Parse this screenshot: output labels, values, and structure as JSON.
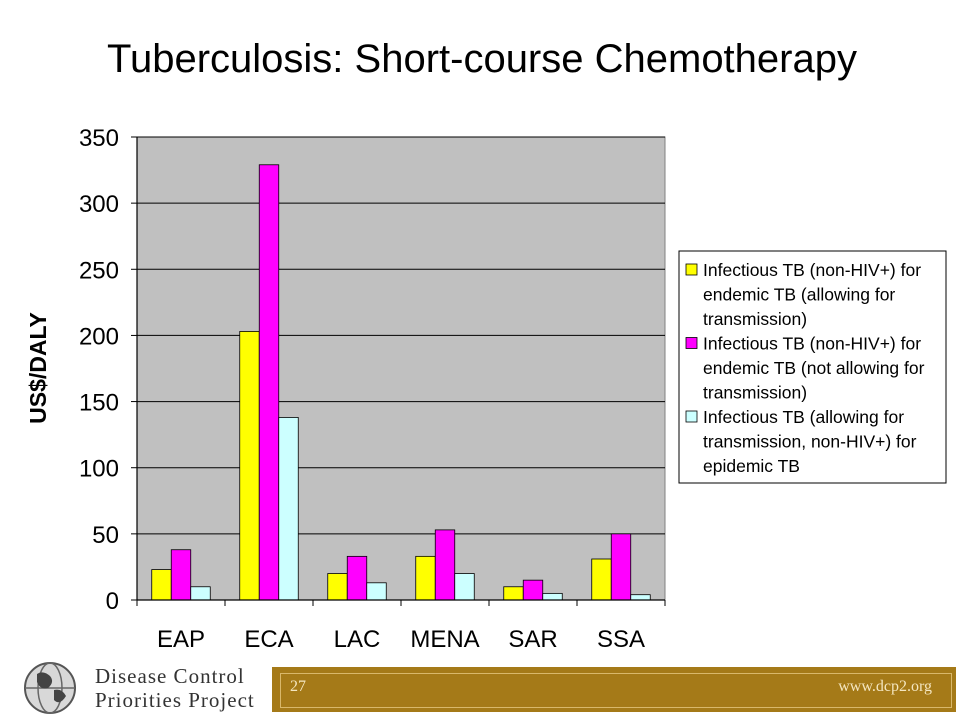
{
  "slide": {
    "page_number": "27",
    "url": "www.dcp2.org",
    "logo_line1": "Disease Control",
    "logo_line2": "Priorities Project"
  },
  "chart_data": {
    "type": "bar",
    "title": "Tuberculosis: Short-course Chemotherapy",
    "xlabel": "",
    "ylabel": "US$/DALY",
    "categories": [
      "EAP",
      "ECA",
      "LAC",
      "MENA",
      "SAR",
      "SSA"
    ],
    "ylim": [
      0,
      350
    ],
    "yticks": [
      0,
      50,
      100,
      150,
      200,
      250,
      300,
      350
    ],
    "grid": true,
    "plot_background": "#c0c0c0",
    "legend_position": "right",
    "series": [
      {
        "name": "Infectious TB (non-HIV+) for endemic TB (allowing for transmission)",
        "legend_lines": [
          "Infectious TB (non-HIV+) for",
          "endemic TB (allowing for",
          "transmission)"
        ],
        "color": "#ffff00",
        "values": [
          23,
          203,
          20,
          33,
          10,
          31
        ]
      },
      {
        "name": "Infectious TB (non-HIV+) for endemic TB (not allowing for transmission)",
        "legend_lines": [
          "Infectious TB (non-HIV+) for",
          "endemic TB (not allowing for",
          "transmission)"
        ],
        "color": "#ff00ff",
        "values": [
          38,
          329,
          33,
          53,
          15,
          50
        ]
      },
      {
        "name": "Infectious TB (allowing for transmission, non-HIV+) for epidemic TB",
        "legend_lines": [
          "Infectious TB (allowing for",
          "transmission, non-HIV+) for",
          "epidemic TB"
        ],
        "color": "#ccffff",
        "values": [
          10,
          138,
          13,
          20,
          5,
          4
        ]
      }
    ]
  }
}
